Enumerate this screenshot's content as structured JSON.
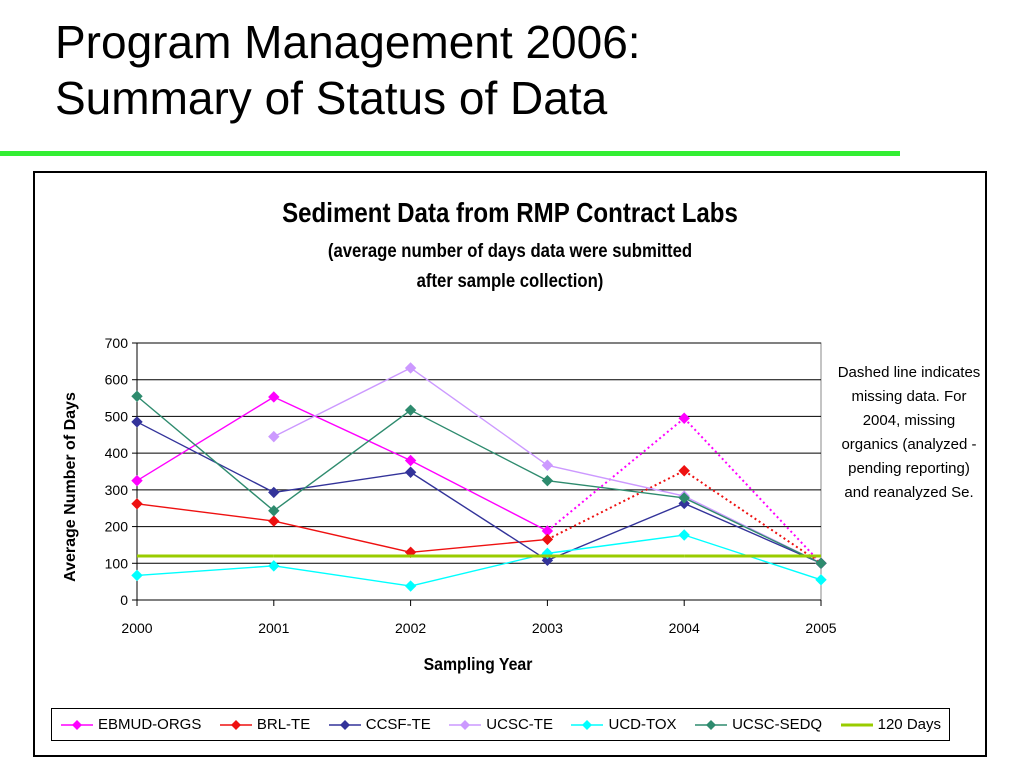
{
  "slide": {
    "title_line1": "Program Management 2006:",
    "title_line2": "Summary of Status of Data",
    "rule_color": "#33ee33"
  },
  "chart_data": {
    "type": "line",
    "title": "Sediment Data from RMP Contract Labs",
    "subtitle_line1": "(average number of days data were submitted",
    "subtitle_line2": "after sample collection)",
    "xlabel": "Sampling Year",
    "ylabel": "Average Number of Days",
    "x": [
      "2000",
      "2001",
      "2002",
      "2003",
      "2004",
      "2005"
    ],
    "ylim": [
      0,
      700
    ],
    "yticks": [
      "0",
      "100",
      "200",
      "300",
      "400",
      "500",
      "600",
      "700"
    ],
    "grid": true,
    "legend_position": "bottom",
    "note": "Dashed line indicates missing data. For 2004, missing organics (analyzed - pending reporting) and reanalyzed Se.",
    "series": [
      {
        "name": "EBMUD-ORGS",
        "color": "#ff00ff",
        "values": [
          325,
          553,
          380,
          188,
          495,
          100
        ],
        "dashed_segments": [
          3,
          4
        ]
      },
      {
        "name": "BRL-TE",
        "color": "#ee1111",
        "values": [
          262,
          215,
          130,
          165,
          352,
          100
        ],
        "dashed_segments": [
          3,
          4
        ]
      },
      {
        "name": "CCSF-TE",
        "color": "#33339a",
        "values": [
          485,
          293,
          348,
          108,
          263,
          100
        ],
        "dashed_segments": []
      },
      {
        "name": "UCSC-TE",
        "color": "#cc99ff",
        "values": [
          null,
          445,
          632,
          367,
          283,
          100
        ],
        "dashed_segments": []
      },
      {
        "name": "UCD-TOX",
        "color": "#00ffff",
        "values": [
          67,
          93,
          38,
          127,
          177,
          55
        ],
        "dashed_segments": []
      },
      {
        "name": "UCSC-SEDQ",
        "color": "#2e8b6e",
        "values": [
          555,
          243,
          517,
          325,
          278,
          100
        ],
        "dashed_segments": []
      },
      {
        "name": "120 Days",
        "color": "#99cc00",
        "values": [
          120,
          120,
          120,
          120,
          120,
          120
        ],
        "dashed_segments": [],
        "no_markers": true
      }
    ]
  }
}
